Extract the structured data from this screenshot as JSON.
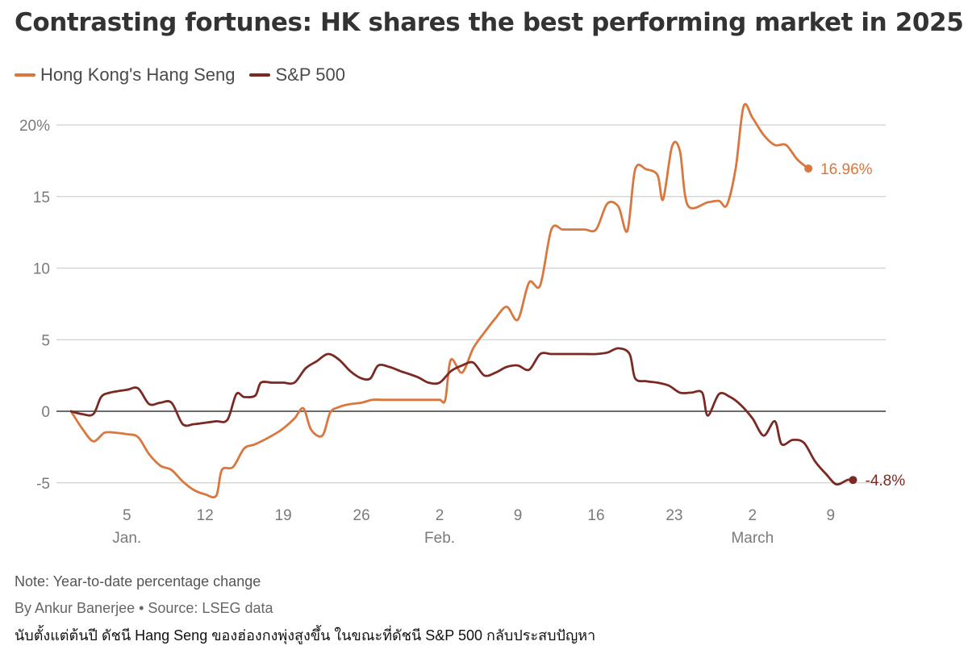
{
  "title": "Contrasting fortunes: HK shares the best performing market in 2025",
  "note": "Note: Year-to-date percentage change",
  "byline": "By Ankur Banerjee • Source: LSEG data",
  "caption": "นับตั้งแต่ต้นปี ดัชนี Hang Seng ของฮ่องกงพุ่งสูงขึ้น ในขณะที่ดัชนี S&P 500 กลับประสบปัญหา",
  "chart_data": {
    "type": "line",
    "title": "Contrasting fortunes: HK shares the best performing market in 2025",
    "xlabel": "",
    "ylabel": "",
    "xlim": [
      0,
      71
    ],
    "ylim": [
      -6.5,
      21.5
    ],
    "x_unit": "days since Dec. 31, 2024",
    "y_ticks": [
      {
        "value": 20,
        "label": "20%"
      },
      {
        "value": 15,
        "label": "15"
      },
      {
        "value": 10,
        "label": "10"
      },
      {
        "value": 5,
        "label": "5"
      },
      {
        "value": 0,
        "label": "0"
      },
      {
        "value": -5,
        "label": "-5"
      }
    ],
    "x_ticks": [
      {
        "value": 5,
        "label": "5",
        "month": "Jan."
      },
      {
        "value": 12,
        "label": "12",
        "month": ""
      },
      {
        "value": 19,
        "label": "19",
        "month": ""
      },
      {
        "value": 26,
        "label": "26",
        "month": ""
      },
      {
        "value": 33,
        "label": "2",
        "month": "Feb."
      },
      {
        "value": 40,
        "label": "9",
        "month": ""
      },
      {
        "value": 47,
        "label": "16",
        "month": ""
      },
      {
        "value": 54,
        "label": "23",
        "month": ""
      },
      {
        "value": 61,
        "label": "2",
        "month": "March"
      },
      {
        "value": 68,
        "label": "9",
        "month": ""
      }
    ],
    "series": [
      {
        "name": "Hong Kong's Hang Seng",
        "color": "#d9773e",
        "end_label": "16.96%",
        "points": [
          [
            0,
            0
          ],
          [
            1,
            -1.2
          ],
          [
            2,
            -2.1
          ],
          [
            3,
            -1.5
          ],
          [
            4,
            -1.5
          ],
          [
            5,
            -1.6
          ],
          [
            6,
            -1.8
          ],
          [
            7,
            -3.0
          ],
          [
            8,
            -3.8
          ],
          [
            9,
            -4.1
          ],
          [
            10,
            -4.9
          ],
          [
            11,
            -5.5
          ],
          [
            12,
            -5.8
          ],
          [
            13,
            -5.9
          ],
          [
            13.5,
            -4.1
          ],
          [
            14.5,
            -3.9
          ],
          [
            15.5,
            -2.6
          ],
          [
            16.5,
            -2.3
          ],
          [
            18,
            -1.7
          ],
          [
            19,
            -1.2
          ],
          [
            20,
            -0.5
          ],
          [
            20.8,
            0.2
          ],
          [
            21.5,
            -1.3
          ],
          [
            22.5,
            -1.7
          ],
          [
            23.2,
            -0.1
          ],
          [
            24,
            0.3
          ],
          [
            25,
            0.5
          ],
          [
            26,
            0.6
          ],
          [
            27,
            0.8
          ],
          [
            28,
            0.8
          ],
          [
            29,
            0.8
          ],
          [
            30,
            0.8
          ],
          [
            31,
            0.8
          ],
          [
            32,
            0.8
          ],
          [
            33,
            0.8
          ],
          [
            33.5,
            0.8
          ],
          [
            34,
            3.6
          ],
          [
            35,
            2.7
          ],
          [
            36,
            4.4
          ],
          [
            37,
            5.5
          ],
          [
            38,
            6.5
          ],
          [
            39,
            7.3
          ],
          [
            40,
            6.4
          ],
          [
            41,
            9.0
          ],
          [
            42,
            8.8
          ],
          [
            43,
            12.7
          ],
          [
            44,
            12.7
          ],
          [
            45,
            12.7
          ],
          [
            46,
            12.7
          ],
          [
            47,
            12.7
          ],
          [
            48,
            14.5
          ],
          [
            49,
            14.3
          ],
          [
            49.8,
            12.6
          ],
          [
            50.5,
            16.9
          ],
          [
            51.5,
            16.9
          ],
          [
            52.5,
            16.5
          ],
          [
            53,
            14.8
          ],
          [
            53.8,
            18.5
          ],
          [
            54.5,
            18.2
          ],
          [
            55.2,
            14.4
          ],
          [
            57,
            14.6
          ],
          [
            58,
            14.7
          ],
          [
            58.7,
            14.4
          ],
          [
            59.5,
            17.0
          ],
          [
            60.2,
            21.3
          ],
          [
            61,
            20.5
          ],
          [
            62,
            19.3
          ],
          [
            63,
            18.6
          ],
          [
            64,
            18.6
          ],
          [
            65,
            17.6
          ],
          [
            66,
            16.96
          ]
        ]
      },
      {
        "name": "S&P 500",
        "color": "#7a2a22",
        "end_label": "-4.8%",
        "points": [
          [
            0,
            0
          ],
          [
            1,
            -0.2
          ],
          [
            2,
            -0.2
          ],
          [
            2.7,
            1.0
          ],
          [
            3.5,
            1.3
          ],
          [
            5,
            1.5
          ],
          [
            6,
            1.6
          ],
          [
            7,
            0.5
          ],
          [
            8,
            0.6
          ],
          [
            9,
            0.6
          ],
          [
            10,
            -0.9
          ],
          [
            11,
            -0.9
          ],
          [
            12,
            -0.8
          ],
          [
            13,
            -0.7
          ],
          [
            14,
            -0.6
          ],
          [
            14.8,
            1.2
          ],
          [
            15.5,
            1.0
          ],
          [
            16.5,
            1.1
          ],
          [
            17,
            2.0
          ],
          [
            18,
            2.0
          ],
          [
            19,
            2.0
          ],
          [
            20,
            2.0
          ],
          [
            21,
            3.0
          ],
          [
            22,
            3.5
          ],
          [
            23,
            4.0
          ],
          [
            24,
            3.6
          ],
          [
            25,
            2.8
          ],
          [
            26,
            2.3
          ],
          [
            26.8,
            2.3
          ],
          [
            27.5,
            3.2
          ],
          [
            28.5,
            3.1
          ],
          [
            29.5,
            2.8
          ],
          [
            31,
            2.4
          ],
          [
            32,
            2.0
          ],
          [
            33,
            2.0
          ],
          [
            34,
            2.8
          ],
          [
            35,
            3.2
          ],
          [
            36,
            3.4
          ],
          [
            37,
            2.5
          ],
          [
            38,
            2.7
          ],
          [
            39,
            3.1
          ],
          [
            40,
            3.2
          ],
          [
            41,
            2.9
          ],
          [
            42,
            4.0
          ],
          [
            43,
            4.0
          ],
          [
            44,
            4.0
          ],
          [
            45,
            4.0
          ],
          [
            46,
            4.0
          ],
          [
            47,
            4.0
          ],
          [
            48,
            4.1
          ],
          [
            49,
            4.4
          ],
          [
            50,
            4.0
          ],
          [
            50.5,
            2.3
          ],
          [
            51.5,
            2.1
          ],
          [
            52.5,
            2.0
          ],
          [
            53.5,
            1.8
          ],
          [
            54.5,
            1.3
          ],
          [
            55.5,
            1.3
          ],
          [
            56.5,
            1.3
          ],
          [
            57,
            -0.3
          ],
          [
            58,
            1.2
          ],
          [
            59,
            1.0
          ],
          [
            60,
            0.4
          ],
          [
            61,
            -0.5
          ],
          [
            62,
            -1.7
          ],
          [
            63,
            -0.7
          ],
          [
            63.6,
            -2.3
          ],
          [
            64.6,
            -2.0
          ],
          [
            65.6,
            -2.2
          ],
          [
            66.6,
            -3.5
          ],
          [
            67.6,
            -4.4
          ],
          [
            68.5,
            -5.1
          ],
          [
            69.5,
            -4.8
          ],
          [
            70,
            -4.8
          ]
        ]
      }
    ]
  }
}
